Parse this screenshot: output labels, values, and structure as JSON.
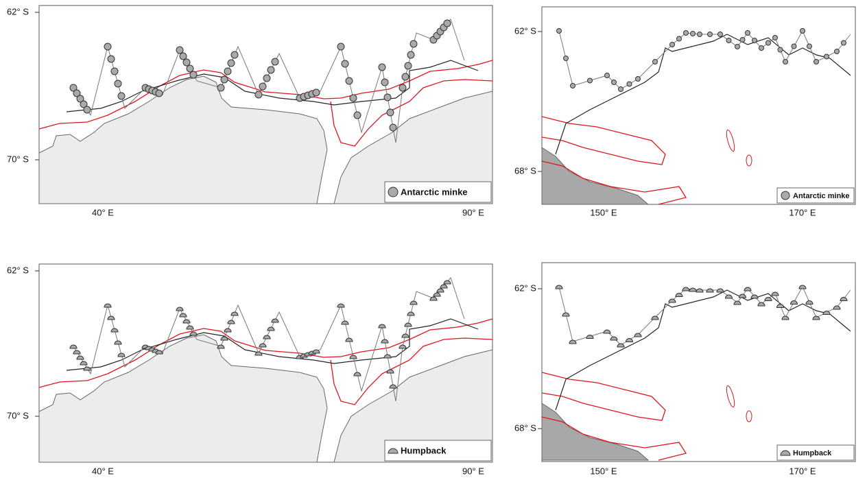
{
  "panels": [
    {
      "lat_labels": [
        "62° S",
        "70° S"
      ],
      "lon_labels": [
        "40° E",
        "90° E"
      ],
      "legend": "Antarctic minke"
    },
    {
      "lat_labels": [
        "62° S",
        "68° S"
      ],
      "lon_labels": [
        "150° E",
        "170° E"
      ],
      "legend": "Antarctic minke"
    },
    {
      "lat_labels": [
        "62° S",
        "70° S"
      ],
      "lon_labels": [
        "40° E",
        "90° E"
      ],
      "legend": "Humpback"
    },
    {
      "lat_labels": [
        "62° S",
        "68° S"
      ],
      "lon_labels": [
        "150° E",
        "170° E"
      ],
      "legend": "Humpback"
    }
  ]
}
